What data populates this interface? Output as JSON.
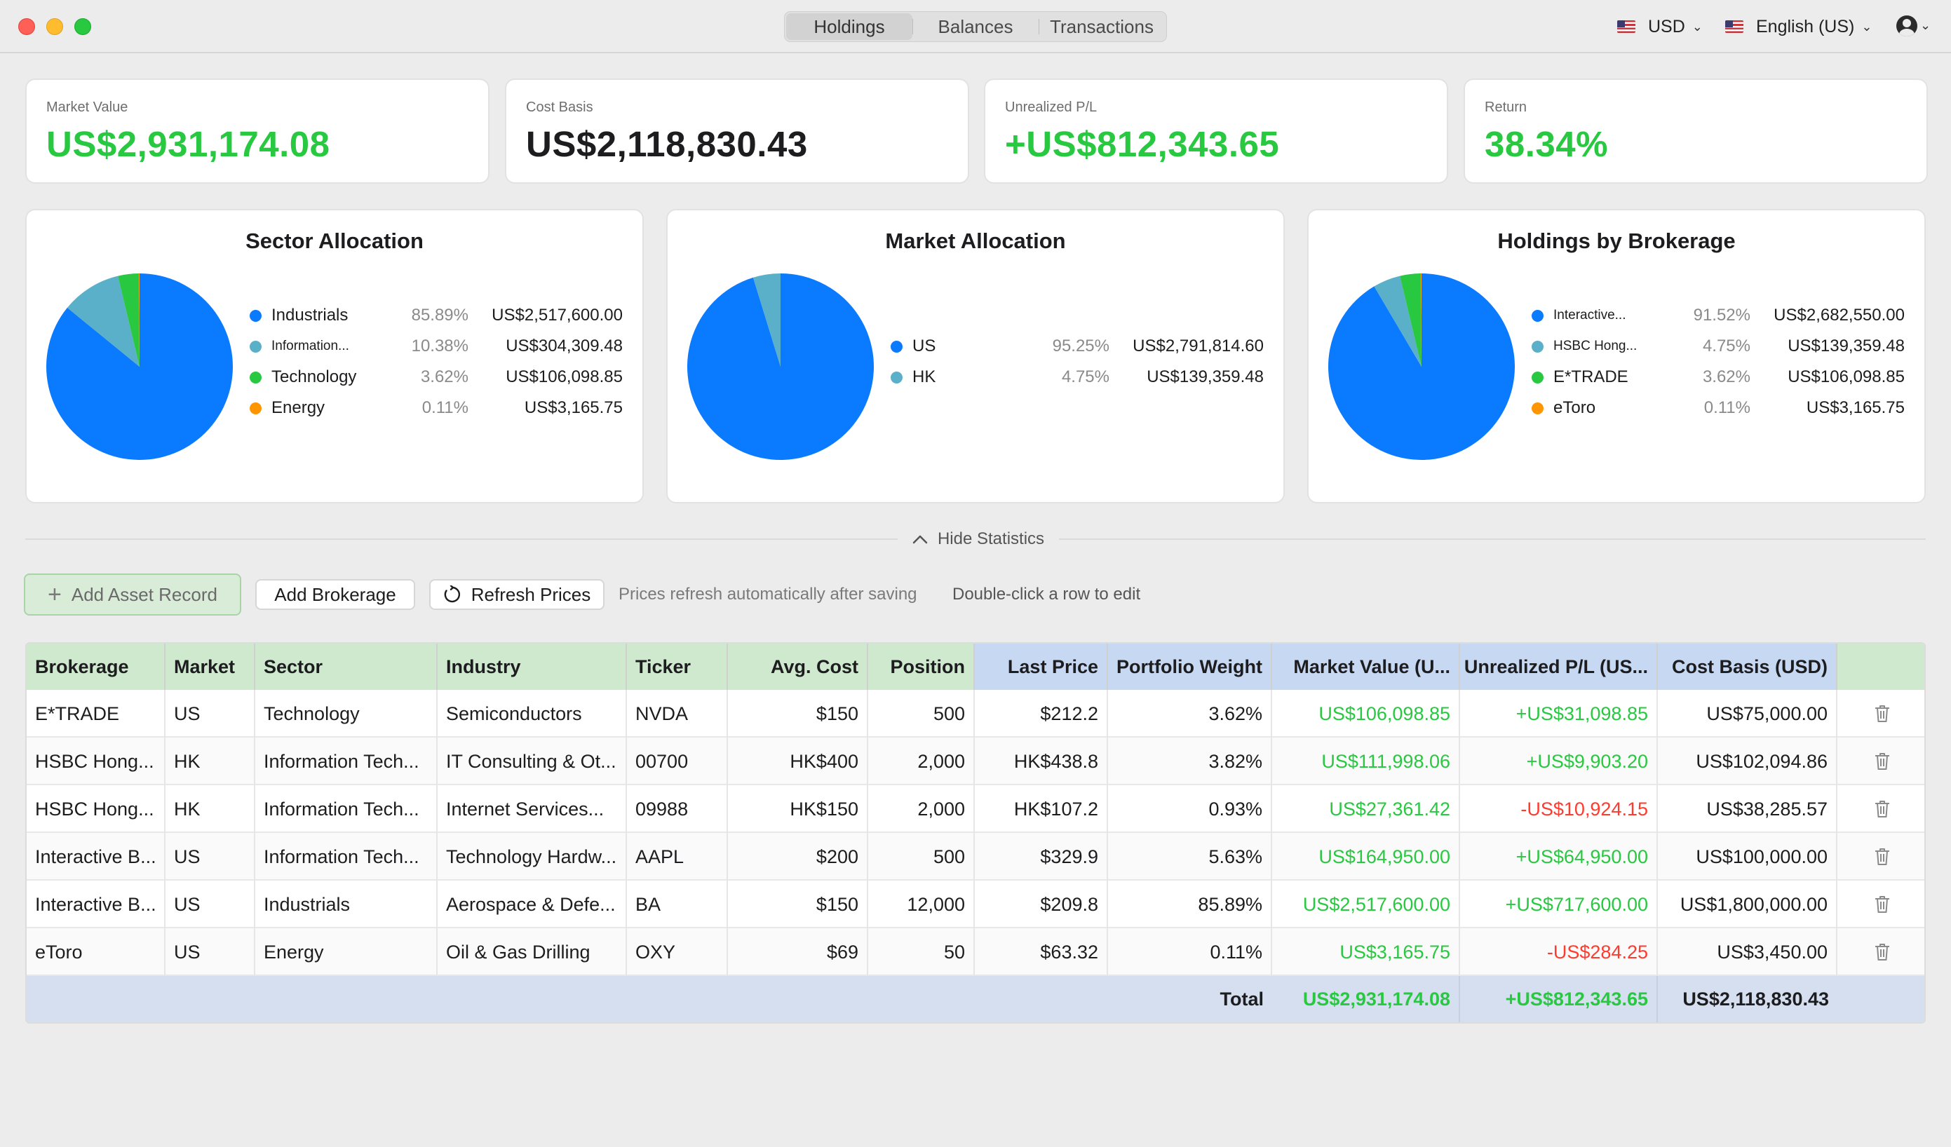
{
  "titlebar": {
    "tabs": [
      {
        "label": "Holdings",
        "active": true
      },
      {
        "label": "Balances",
        "active": false
      },
      {
        "label": "Transactions",
        "active": false
      }
    ],
    "currency": "USD",
    "language": "English (US)",
    "icons": [
      "us-flag-icon",
      "chevron-down-icon",
      "account-icon"
    ]
  },
  "summary": [
    {
      "label": "Market Value",
      "value": "US$2,931,174.08",
      "color": "green"
    },
    {
      "label": "Cost Basis",
      "value": "US$2,118,830.43",
      "color": "black"
    },
    {
      "label": "Unrealized P/L",
      "value": "+US$812,343.65",
      "color": "green"
    },
    {
      "label": "Return",
      "value": "38.34%",
      "color": "green"
    }
  ],
  "colors": {
    "blue": "#0a7aff",
    "teal": "#5aafc9",
    "green": "#28c840",
    "orange": "#ff9500",
    "positive": "#28c840",
    "negative": "#ff3b30"
  },
  "charts": [
    {
      "title": "Sector Allocation",
      "items": [
        {
          "name": "Industrials",
          "pct": "85.89%",
          "amount": "US$2,517,600.00",
          "value": 85.89,
          "color": "#0a7aff"
        },
        {
          "name": "Information...",
          "pct": "10.38%",
          "amount": "US$304,309.48",
          "value": 10.38,
          "color": "#5aafc9"
        },
        {
          "name": "Technology",
          "pct": "3.62%",
          "amount": "US$106,098.85",
          "value": 3.62,
          "color": "#28c840"
        },
        {
          "name": "Energy",
          "pct": "0.11%",
          "amount": "US$3,165.75",
          "value": 0.11,
          "color": "#ff9500"
        }
      ]
    },
    {
      "title": "Market Allocation",
      "items": [
        {
          "name": "US",
          "pct": "95.25%",
          "amount": "US$2,791,814.60",
          "value": 95.25,
          "color": "#0a7aff"
        },
        {
          "name": "HK",
          "pct": "4.75%",
          "amount": "US$139,359.48",
          "value": 4.75,
          "color": "#5aafc9"
        }
      ]
    },
    {
      "title": "Holdings by Brokerage",
      "items": [
        {
          "name": "Interactive...",
          "pct": "91.52%",
          "amount": "US$2,682,550.00",
          "value": 91.52,
          "color": "#0a7aff"
        },
        {
          "name": "HSBC Hong...",
          "pct": "4.75%",
          "amount": "US$139,359.48",
          "value": 4.75,
          "color": "#5aafc9"
        },
        {
          "name": "E*TRADE",
          "pct": "3.62%",
          "amount": "US$106,098.85",
          "value": 3.62,
          "color": "#28c840"
        },
        {
          "name": "eToro",
          "pct": "0.11%",
          "amount": "US$3,165.75",
          "value": 0.11,
          "color": "#ff9500"
        }
      ]
    }
  ],
  "stats_toggle": "Hide Statistics",
  "toolbar": {
    "add_asset": "Add Asset Record",
    "add_brokerage": "Add Brokerage",
    "refresh": "Refresh Prices",
    "hint_refresh": "Prices refresh automatically after saving",
    "hint_edit": "Double-click a row to edit"
  },
  "table": {
    "headers": [
      "Brokerage",
      "Market",
      "Sector",
      "Industry",
      "Ticker",
      "Avg. Cost",
      "Position",
      "Last Price",
      "Portfolio Weight",
      "Market Value (U...",
      "Unrealized P/L (US...",
      "Cost Basis (USD)"
    ],
    "rows": [
      {
        "cells": [
          "E*TRADE",
          "US",
          "Technology",
          "Semiconductors",
          "NVDA",
          "$150",
          "500",
          "$212.2",
          "3.62%",
          "US$106,098.85",
          "+US$31,098.85",
          "US$75,000.00"
        ],
        "pl_sign": "pos"
      },
      {
        "cells": [
          "HSBC Hong...",
          "HK",
          "Information Tech...",
          "IT Consulting & Ot...",
          "00700",
          "HK$400",
          "2,000",
          "HK$438.8",
          "3.82%",
          "US$111,998.06",
          "+US$9,903.20",
          "US$102,094.86"
        ],
        "pl_sign": "pos"
      },
      {
        "cells": [
          "HSBC Hong...",
          "HK",
          "Information Tech...",
          "Internet Services...",
          "09988",
          "HK$150",
          "2,000",
          "HK$107.2",
          "0.93%",
          "US$27,361.42",
          "-US$10,924.15",
          "US$38,285.57"
        ],
        "pl_sign": "neg"
      },
      {
        "cells": [
          "Interactive B...",
          "US",
          "Information Tech...",
          "Technology Hardw...",
          "AAPL",
          "$200",
          "500",
          "$329.9",
          "5.63%",
          "US$164,950.00",
          "+US$64,950.00",
          "US$100,000.00"
        ],
        "pl_sign": "pos"
      },
      {
        "cells": [
          "Interactive B...",
          "US",
          "Industrials",
          "Aerospace & Defe...",
          "BA",
          "$150",
          "12,000",
          "$209.8",
          "85.89%",
          "US$2,517,600.00",
          "+US$717,600.00",
          "US$1,800,000.00"
        ],
        "pl_sign": "pos"
      },
      {
        "cells": [
          "eToro",
          "US",
          "Energy",
          "Oil & Gas Drilling",
          "OXY",
          "$69",
          "50",
          "$63.32",
          "0.11%",
          "US$3,165.75",
          "-US$284.25",
          "US$3,450.00"
        ],
        "pl_sign": "neg"
      }
    ],
    "total": {
      "label": "Total",
      "market_value": "US$2,931,174.08",
      "unrealized_pl": "+US$812,343.65",
      "cost_basis": "US$2,118,830.43"
    }
  }
}
